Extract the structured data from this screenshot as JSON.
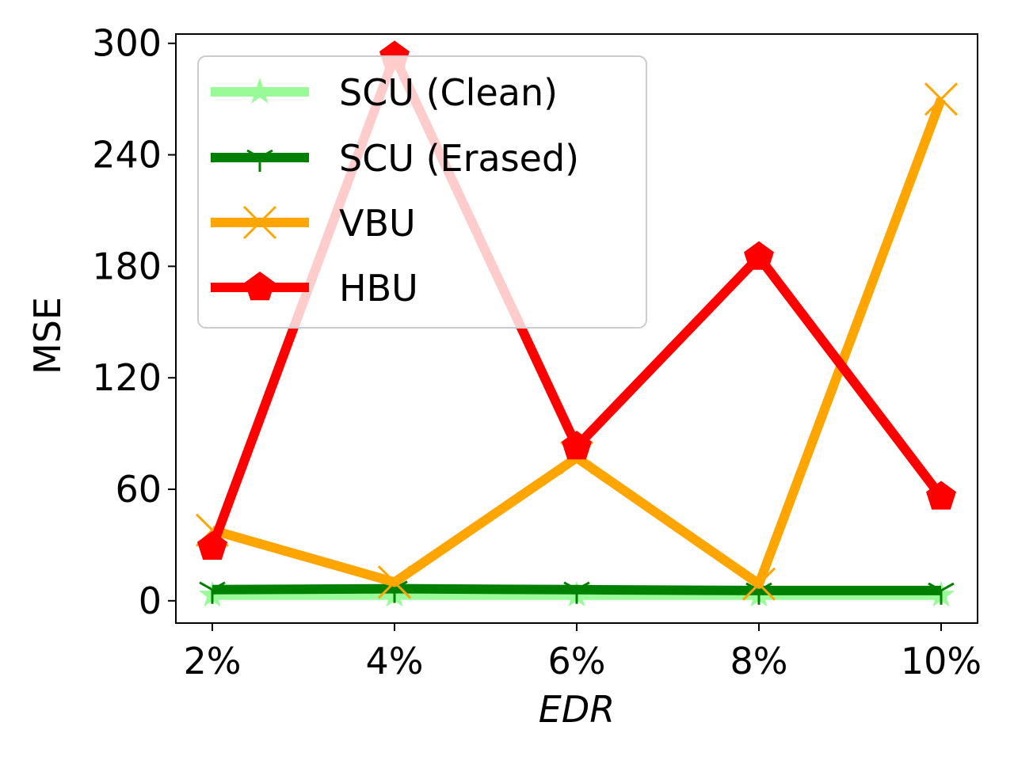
{
  "chart_data": {
    "type": "line",
    "xlabel": "EDR",
    "ylabel": "MSE",
    "categories": [
      "2%",
      "4%",
      "6%",
      "8%",
      "10%"
    ],
    "ylim": [
      -12,
      305
    ],
    "yticks": [
      0,
      60,
      120,
      180,
      240,
      300
    ],
    "grid": false,
    "legend_position": "top-left",
    "series": [
      {
        "name": "SCU (Clean)",
        "color": "#98fb98",
        "marker": "star",
        "values": [
          3,
          3,
          3,
          3,
          3
        ]
      },
      {
        "name": "SCU (Erased)",
        "color": "#008000",
        "marker": "tri-down",
        "values": [
          6,
          6.5,
          6,
          5.5,
          5.5
        ]
      },
      {
        "name": "VBU",
        "color": "#ffa500",
        "marker": "x",
        "values": [
          38,
          10,
          77,
          9,
          270
        ]
      },
      {
        "name": "HBU",
        "color": "#ff0000",
        "marker": "pentagon",
        "values": [
          29,
          293,
          83,
          185,
          56
        ]
      }
    ]
  }
}
